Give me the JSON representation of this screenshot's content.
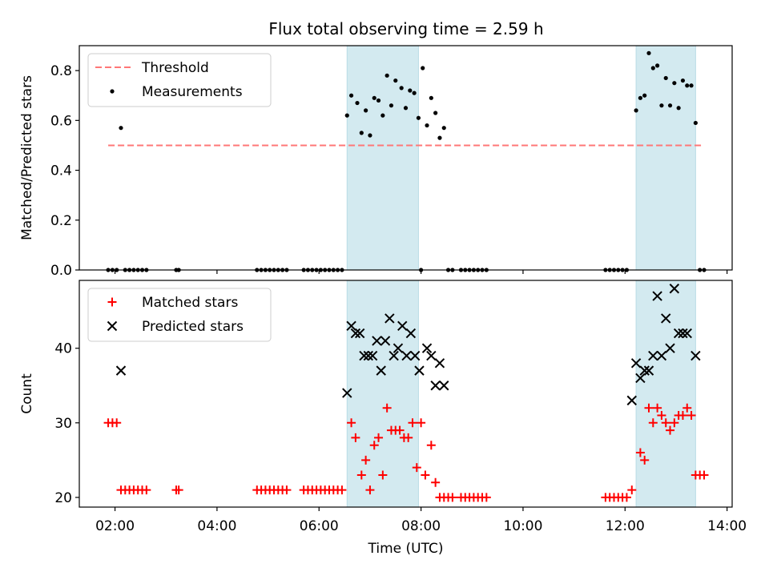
{
  "chart_data": [
    {
      "type": "scatter",
      "title": "Flux total observing time = 2.59 h",
      "xlabel": "",
      "ylabel": "Matched/Predicted stars",
      "xlim": [
        "01:18",
        "14:06"
      ],
      "ylim": [
        0,
        0.9
      ],
      "yticks": [
        0.0,
        0.2,
        0.4,
        0.6,
        0.8
      ],
      "ytick_labels": [
        "0.0",
        "0.2",
        "0.4",
        "0.6",
        "0.8"
      ],
      "grid": false,
      "legend_position": "top-left",
      "legend": [
        "Threshold",
        "Measurements"
      ],
      "shaded_intervals": [
        [
          "06:33",
          "07:57"
        ],
        [
          "12:13",
          "13:23"
        ]
      ],
      "threshold": {
        "name": "Threshold",
        "value": 0.5,
        "x_range": [
          "01:52",
          "13:30"
        ],
        "color": "#ff7777",
        "style": "dashed"
      },
      "series": [
        {
          "name": "Measurements",
          "marker": "dot",
          "color": "#000000",
          "points": [
            [
              "01:52",
              0
            ],
            [
              "01:57",
              0
            ],
            [
              "02:02",
              0
            ],
            [
              "02:07",
              0.57
            ],
            [
              "02:12",
              0
            ],
            [
              "02:17",
              0
            ],
            [
              "02:22",
              0
            ],
            [
              "02:27",
              0
            ],
            [
              "02:32",
              0
            ],
            [
              "02:37",
              0
            ],
            [
              "03:12",
              0
            ],
            [
              "03:15",
              0
            ],
            [
              "04:47",
              0
            ],
            [
              "04:52",
              0
            ],
            [
              "04:57",
              0
            ],
            [
              "05:02",
              0
            ],
            [
              "05:07",
              0
            ],
            [
              "05:12",
              0
            ],
            [
              "05:17",
              0
            ],
            [
              "05:22",
              0
            ],
            [
              "05:42",
              0
            ],
            [
              "05:47",
              0
            ],
            [
              "05:52",
              0
            ],
            [
              "05:57",
              0
            ],
            [
              "06:02",
              0
            ],
            [
              "06:07",
              0
            ],
            [
              "06:12",
              0
            ],
            [
              "06:17",
              0
            ],
            [
              "06:22",
              0
            ],
            [
              "06:27",
              0
            ],
            [
              "06:33",
              0.62
            ],
            [
              "06:38",
              0.7
            ],
            [
              "06:45",
              0.67
            ],
            [
              "06:50",
              0.55
            ],
            [
              "06:55",
              0.64
            ],
            [
              "07:00",
              0.54
            ],
            [
              "07:05",
              0.69
            ],
            [
              "07:10",
              0.68
            ],
            [
              "07:15",
              0.62
            ],
            [
              "07:20",
              0.78
            ],
            [
              "07:25",
              0.66
            ],
            [
              "07:30",
              0.76
            ],
            [
              "07:37",
              0.73
            ],
            [
              "07:42",
              0.65
            ],
            [
              "07:47",
              0.72
            ],
            [
              "07:52",
              0.71
            ],
            [
              "07:57",
              0.61
            ],
            [
              "08:00",
              0
            ],
            [
              "08:02",
              0.81
            ],
            [
              "08:07",
              0.58
            ],
            [
              "08:12",
              0.69
            ],
            [
              "08:17",
              0.63
            ],
            [
              "08:22",
              0.53
            ],
            [
              "08:27",
              0.57
            ],
            [
              "08:32",
              0
            ],
            [
              "08:37",
              0
            ],
            [
              "08:47",
              0
            ],
            [
              "08:52",
              0
            ],
            [
              "08:57",
              0
            ],
            [
              "09:02",
              0
            ],
            [
              "09:07",
              0
            ],
            [
              "09:12",
              0
            ],
            [
              "09:17",
              0
            ],
            [
              "11:37",
              0
            ],
            [
              "11:42",
              0
            ],
            [
              "11:47",
              0
            ],
            [
              "11:52",
              0
            ],
            [
              "11:57",
              0
            ],
            [
              "12:02",
              0
            ],
            [
              "12:13",
              0.64
            ],
            [
              "12:18",
              0.69
            ],
            [
              "12:23",
              0.7
            ],
            [
              "12:28",
              0.87
            ],
            [
              "12:33",
              0.81
            ],
            [
              "12:38",
              0.82
            ],
            [
              "12:43",
              0.66
            ],
            [
              "12:48",
              0.77
            ],
            [
              "12:53",
              0.66
            ],
            [
              "12:58",
              0.75
            ],
            [
              "13:03",
              0.65
            ],
            [
              "13:08",
              0.76
            ],
            [
              "13:13",
              0.74
            ],
            [
              "13:18",
              0.74
            ],
            [
              "13:23",
              0.59
            ],
            [
              "13:28",
              0
            ],
            [
              "13:33",
              0
            ]
          ]
        }
      ]
    },
    {
      "type": "scatter",
      "title": "",
      "xlabel": "Time (UTC)",
      "ylabel": "Count",
      "xlim": [
        "01:18",
        "14:06"
      ],
      "ylim": [
        18.7,
        49.1
      ],
      "xticks": [
        "02:00",
        "04:00",
        "06:00",
        "08:00",
        "10:00",
        "12:00",
        "14:00"
      ],
      "yticks": [
        20,
        30,
        40
      ],
      "ytick_labels": [
        "20",
        "30",
        "40"
      ],
      "grid": false,
      "legend_position": "top-left",
      "legend": [
        "Matched stars",
        "Predicted stars"
      ],
      "shaded_intervals": [
        [
          "06:33",
          "07:57"
        ],
        [
          "12:13",
          "13:23"
        ]
      ],
      "series": [
        {
          "name": "Matched stars",
          "marker": "plus",
          "color": "#ff0000",
          "points": [
            [
              "01:52",
              30
            ],
            [
              "01:57",
              30
            ],
            [
              "02:02",
              30
            ],
            [
              "02:07",
              21
            ],
            [
              "02:12",
              21
            ],
            [
              "02:17",
              21
            ],
            [
              "02:22",
              21
            ],
            [
              "02:27",
              21
            ],
            [
              "02:32",
              21
            ],
            [
              "02:37",
              21
            ],
            [
              "03:12",
              21
            ],
            [
              "03:15",
              21
            ],
            [
              "04:47",
              21
            ],
            [
              "04:52",
              21
            ],
            [
              "04:57",
              21
            ],
            [
              "05:02",
              21
            ],
            [
              "05:07",
              21
            ],
            [
              "05:12",
              21
            ],
            [
              "05:17",
              21
            ],
            [
              "05:22",
              21
            ],
            [
              "05:42",
              21
            ],
            [
              "05:47",
              21
            ],
            [
              "05:52",
              21
            ],
            [
              "05:57",
              21
            ],
            [
              "06:02",
              21
            ],
            [
              "06:07",
              21
            ],
            [
              "06:12",
              21
            ],
            [
              "06:17",
              21
            ],
            [
              "06:22",
              21
            ],
            [
              "06:27",
              21
            ],
            [
              "06:38",
              30
            ],
            [
              "06:43",
              28
            ],
            [
              "06:50",
              23
            ],
            [
              "06:55",
              25
            ],
            [
              "07:00",
              21
            ],
            [
              "07:05",
              27
            ],
            [
              "07:10",
              28
            ],
            [
              "07:15",
              23
            ],
            [
              "07:20",
              32
            ],
            [
              "07:25",
              29
            ],
            [
              "07:30",
              29
            ],
            [
              "07:35",
              29
            ],
            [
              "07:40",
              28
            ],
            [
              "07:45",
              28
            ],
            [
              "07:50",
              30
            ],
            [
              "07:55",
              24
            ],
            [
              "08:00",
              30
            ],
            [
              "08:05",
              23
            ],
            [
              "08:12",
              27
            ],
            [
              "08:17",
              22
            ],
            [
              "08:22",
              20
            ],
            [
              "08:27",
              20
            ],
            [
              "08:32",
              20
            ],
            [
              "08:37",
              20
            ],
            [
              "08:47",
              20
            ],
            [
              "08:52",
              20
            ],
            [
              "08:57",
              20
            ],
            [
              "09:02",
              20
            ],
            [
              "09:07",
              20
            ],
            [
              "09:12",
              20
            ],
            [
              "09:17",
              20
            ],
            [
              "11:37",
              20
            ],
            [
              "11:42",
              20
            ],
            [
              "11:47",
              20
            ],
            [
              "11:52",
              20
            ],
            [
              "11:57",
              20
            ],
            [
              "12:02",
              20
            ],
            [
              "12:08",
              21
            ],
            [
              "12:18",
              26
            ],
            [
              "12:23",
              25
            ],
            [
              "12:28",
              32
            ],
            [
              "12:33",
              30
            ],
            [
              "12:38",
              32
            ],
            [
              "12:43",
              31
            ],
            [
              "12:48",
              30
            ],
            [
              "12:53",
              29
            ],
            [
              "12:58",
              30
            ],
            [
              "13:03",
              31
            ],
            [
              "13:08",
              31
            ],
            [
              "13:13",
              32
            ],
            [
              "13:18",
              31
            ],
            [
              "13:23",
              23
            ],
            [
              "13:28",
              23
            ],
            [
              "13:33",
              23
            ]
          ]
        },
        {
          "name": "Predicted stars",
          "marker": "x",
          "color": "#000000",
          "points": [
            [
              "02:07",
              37
            ],
            [
              "06:33",
              34
            ],
            [
              "06:38",
              43
            ],
            [
              "06:43",
              42
            ],
            [
              "06:48",
              42
            ],
            [
              "06:53",
              39
            ],
            [
              "06:58",
              39
            ],
            [
              "07:03",
              39
            ],
            [
              "07:08",
              41
            ],
            [
              "07:13",
              37
            ],
            [
              "07:18",
              41
            ],
            [
              "07:23",
              44
            ],
            [
              "07:28",
              39
            ],
            [
              "07:33",
              40
            ],
            [
              "07:38",
              43
            ],
            [
              "07:43",
              39
            ],
            [
              "07:48",
              42
            ],
            [
              "07:53",
              39
            ],
            [
              "07:58",
              37
            ],
            [
              "08:07",
              40
            ],
            [
              "08:12",
              39
            ],
            [
              "08:17",
              35
            ],
            [
              "08:22",
              38
            ],
            [
              "08:27",
              35
            ],
            [
              "12:08",
              33
            ],
            [
              "12:13",
              38
            ],
            [
              "12:18",
              36
            ],
            [
              "12:23",
              37
            ],
            [
              "12:28",
              37
            ],
            [
              "12:33",
              39
            ],
            [
              "12:38",
              47
            ],
            [
              "12:43",
              39
            ],
            [
              "12:48",
              44
            ],
            [
              "12:53",
              40
            ],
            [
              "12:58",
              48
            ],
            [
              "13:03",
              42
            ],
            [
              "13:08",
              42
            ],
            [
              "13:13",
              42
            ],
            [
              "13:23",
              39
            ]
          ]
        }
      ]
    }
  ],
  "colors": {
    "shade": "#d3eaf0",
    "shade_edge": "#b9dce6",
    "threshold": "#ff7777",
    "matched": "#ff0000",
    "predicted": "#000000",
    "measurements": "#000000"
  }
}
